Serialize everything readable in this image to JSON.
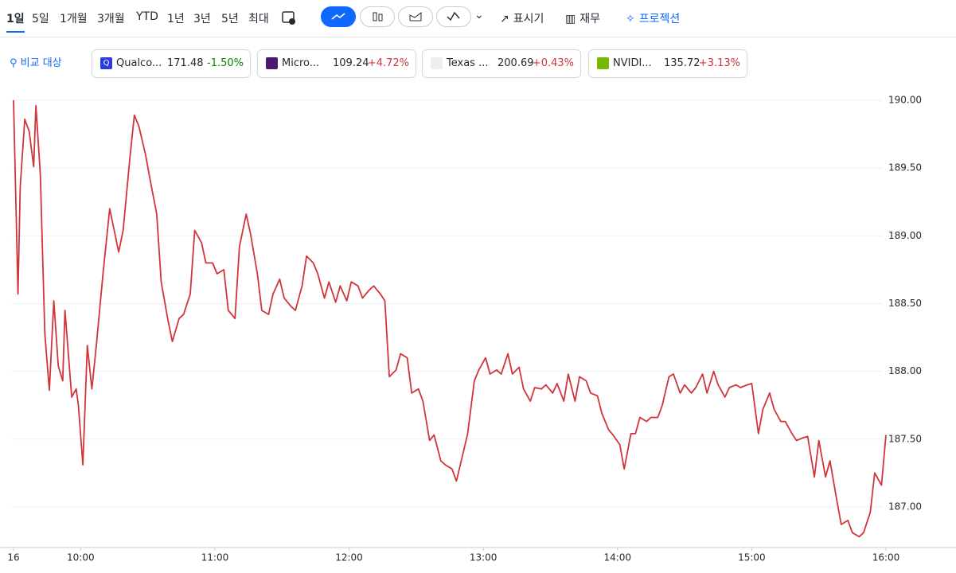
{
  "toolbar": {
    "ranges": [
      "1일",
      "5일",
      "1개월",
      "3개월",
      "YTD",
      "1년",
      "3년",
      "5년",
      "최대"
    ],
    "tools": [
      "표시기",
      "재무",
      "프로젝션"
    ]
  },
  "compare": {
    "label": "비교 대상",
    "items": [
      {
        "icon": "Q",
        "name": "Qualco...",
        "price": "171.48",
        "change": "-1.50%"
      },
      {
        "name": "Micro...",
        "price": "109.24",
        "change": "+4.72%"
      },
      {
        "name": "Texas ...",
        "price": "200.69",
        "change": "+0.43%"
      },
      {
        "name": "NVIDI...",
        "price": "135.72",
        "change": "+3.13%"
      }
    ]
  },
  "chart_data": {
    "type": "line",
    "x": [
      570,
      572,
      573,
      575,
      577,
      579,
      580,
      582,
      584,
      586,
      588,
      590,
      592,
      593,
      596,
      598,
      599,
      601,
      603,
      605,
      607,
      610,
      613,
      615,
      617,
      619,
      622,
      624,
      626,
      629,
      631,
      634,
      636,
      639,
      641,
      644,
      646,
      649,
      651,
      654,
      656,
      659,
      661,
      664,
      666,
      669,
      671,
      674,
      676,
      679,
      681,
      684,
      686,
      689,
      691,
      694,
      696,
      699,
      701,
      704,
      706,
      709,
      711,
      714,
      716,
      719,
      721,
      724,
      726,
      729,
      731,
      734,
      736,
      738,
      741,
      743,
      746,
      748,
      751,
      753,
      756,
      758,
      761,
      763,
      766,
      768,
      771,
      773,
      776,
      778,
      781,
      783,
      786,
      788,
      791,
      793,
      796,
      798,
      801,
      803,
      806,
      808,
      811,
      813,
      816,
      818,
      821,
      823,
      826,
      828,
      831,
      833,
      836,
      838,
      841,
      843,
      846,
      848,
      850,
      853,
      855,
      858,
      860,
      863,
      865,
      868,
      870,
      873,
      875,
      878,
      880,
      883,
      885,
      888,
      890,
      893,
      895,
      898,
      900,
      903,
      905,
      908,
      910,
      913,
      915,
      918,
      920,
      923,
      925,
      928,
      930,
      933,
      935,
      938,
      940,
      943,
      945,
      948,
      950,
      953,
      955,
      958,
      960
    ],
    "series": [
      {
        "color": "#d1343a",
        "values": [
          190.0,
          188.57,
          189.36,
          189.86,
          189.77,
          189.51,
          189.96,
          189.45,
          188.28,
          187.86,
          188.52,
          188.04,
          187.93,
          188.45,
          187.81,
          187.87,
          187.75,
          187.31,
          188.19,
          187.87,
          188.19,
          188.72,
          189.2,
          189.04,
          188.88,
          189.04,
          189.57,
          189.89,
          189.81,
          189.6,
          189.42,
          189.16,
          188.66,
          188.38,
          188.22,
          188.39,
          188.42,
          188.57,
          189.04,
          188.95,
          188.8,
          188.8,
          188.72,
          188.75,
          188.45,
          188.39,
          188.92,
          189.16,
          189.01,
          188.72,
          188.45,
          188.42,
          188.57,
          188.68,
          188.54,
          188.48,
          188.45,
          188.63,
          188.85,
          188.8,
          188.72,
          188.54,
          188.66,
          188.51,
          188.63,
          188.52,
          188.66,
          188.63,
          188.54,
          188.6,
          188.63,
          188.57,
          188.52,
          187.96,
          188.01,
          188.13,
          188.1,
          187.84,
          187.87,
          187.78,
          187.49,
          187.53,
          187.34,
          187.31,
          187.28,
          187.19,
          187.4,
          187.54,
          187.93,
          188.01,
          188.1,
          187.98,
          188.01,
          187.98,
          188.13,
          187.98,
          188.03,
          187.87,
          187.78,
          187.88,
          187.87,
          187.9,
          187.84,
          187.91,
          187.78,
          187.98,
          187.78,
          187.96,
          187.93,
          187.84,
          187.82,
          187.69,
          187.57,
          187.53,
          187.46,
          187.28,
          187.54,
          187.54,
          187.66,
          187.63,
          187.66,
          187.66,
          187.75,
          187.96,
          187.98,
          187.84,
          187.9,
          187.84,
          187.88,
          187.98,
          187.84,
          188.0,
          187.9,
          187.81,
          187.88,
          187.9,
          187.88,
          187.9,
          187.91,
          187.54,
          187.72,
          187.84,
          187.72,
          187.63,
          187.63,
          187.54,
          187.49,
          187.51,
          187.52,
          187.22,
          187.49,
          187.22,
          187.34,
          187.05,
          186.87,
          186.9,
          186.81,
          186.78,
          186.81,
          186.96,
          187.25,
          187.16,
          187.53
        ]
      }
    ],
    "xlim": [
      570,
      960
    ],
    "ylim": [
      186.7,
      190.0
    ],
    "xticks": [
      {
        "value": 570,
        "label": "16"
      },
      {
        "value": 600,
        "label": "10:00"
      },
      {
        "value": 660,
        "label": "11:00"
      },
      {
        "value": 720,
        "label": "12:00"
      },
      {
        "value": 780,
        "label": "13:00"
      },
      {
        "value": 840,
        "label": "14:00"
      },
      {
        "value": 900,
        "label": "15:00"
      },
      {
        "value": 960,
        "label": "16:00"
      }
    ],
    "yticks": [
      {
        "value": 187,
        "label": "187.00"
      },
      {
        "value": 187.5,
        "label": "187.50"
      },
      {
        "value": 188,
        "label": "188.00"
      },
      {
        "value": 188.5,
        "label": "188.50"
      },
      {
        "value": 189,
        "label": "189.00"
      },
      {
        "value": 189.5,
        "label": "189.50"
      },
      {
        "value": 190,
        "label": "190.00"
      }
    ],
    "grid": true
  }
}
